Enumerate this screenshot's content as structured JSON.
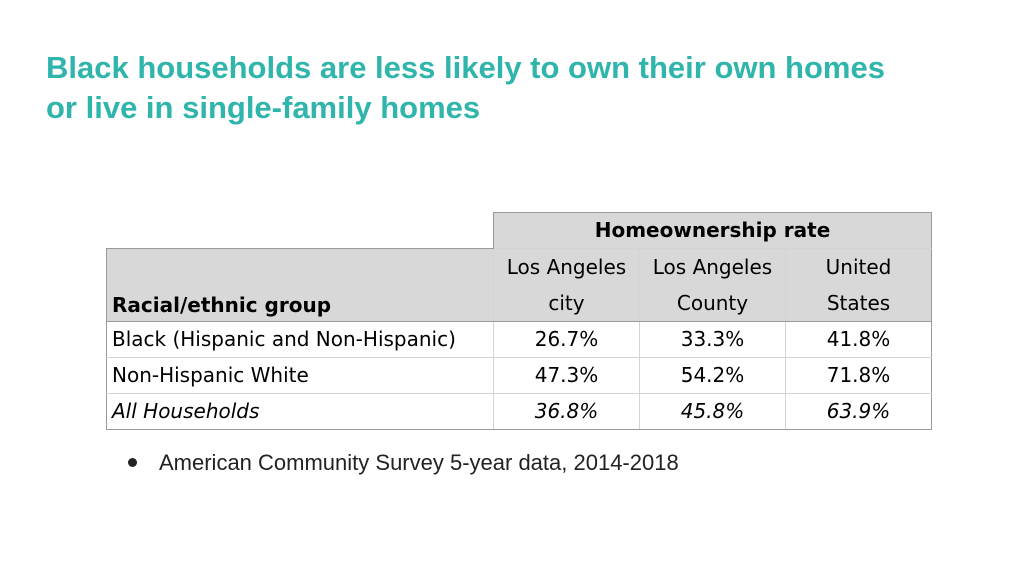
{
  "slide": {
    "title_line1": "Black households are less likely to own their own homes",
    "title_line2": "or live in single-family homes",
    "title_color": "#2fb5ab"
  },
  "table": {
    "group_header": "Homeownership rate",
    "row_header": "Racial/ethnic group",
    "columns": [
      {
        "line1": "Los Angeles",
        "line2": "city"
      },
      {
        "line1": "Los Angeles",
        "line2": "County"
      },
      {
        "line1": "United",
        "line2": "States"
      }
    ],
    "rows": [
      {
        "label": "Black (Hispanic and Non-Hispanic)",
        "values": [
          "26.7%",
          "33.3%",
          "41.8%"
        ]
      },
      {
        "label": "Non-Hispanic White",
        "values": [
          "47.3%",
          "54.2%",
          "71.8%"
        ]
      },
      {
        "label": "All Households",
        "values": [
          "36.8%",
          "45.8%",
          "63.9%"
        ]
      }
    ],
    "header_bg": "#d8d8d8"
  },
  "bullets": [
    {
      "icon": "bullet-dot-icon",
      "text": "American Community Survey 5-year data, 2014-2018"
    }
  ]
}
